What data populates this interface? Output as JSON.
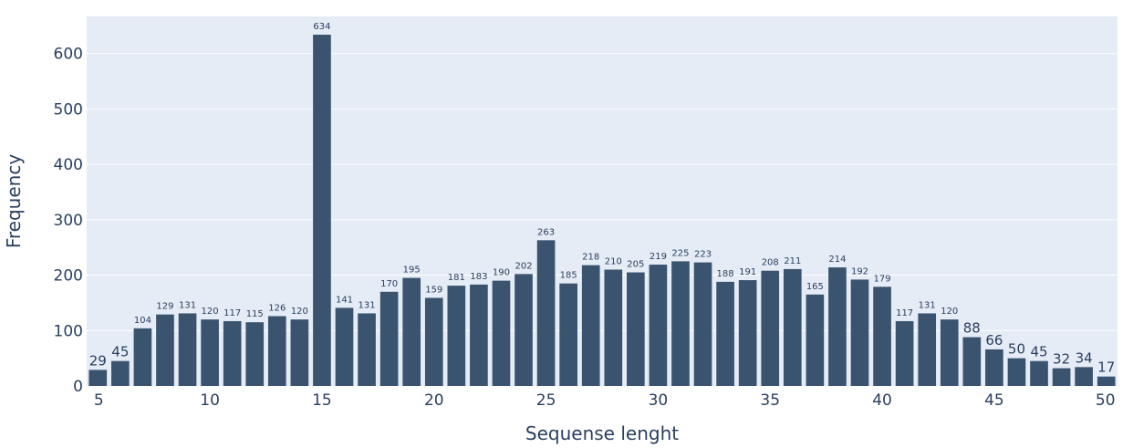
{
  "chart_data": {
    "type": "bar",
    "title": "",
    "xlabel": "Sequense lenght",
    "ylabel": "Frequency",
    "x": [
      5,
      6,
      7,
      8,
      9,
      10,
      11,
      12,
      13,
      14,
      15,
      16,
      17,
      18,
      19,
      20,
      21,
      22,
      23,
      24,
      25,
      26,
      27,
      28,
      29,
      30,
      31,
      32,
      33,
      34,
      35,
      36,
      37,
      38,
      39,
      40,
      41,
      42,
      43,
      44,
      45,
      46,
      47,
      48,
      49,
      50
    ],
    "values": [
      29,
      45,
      104,
      129,
      131,
      120,
      117,
      115,
      126,
      120,
      634,
      141,
      131,
      170,
      195,
      159,
      181,
      183,
      190,
      202,
      263,
      185,
      218,
      210,
      205,
      219,
      225,
      223,
      188,
      191,
      208,
      211,
      165,
      214,
      192,
      179,
      117,
      131,
      120,
      88,
      66,
      50,
      45,
      32,
      34,
      17
    ],
    "x_ticks": [
      5,
      10,
      15,
      20,
      25,
      30,
      35,
      40,
      45,
      50
    ],
    "y_ticks": [
      0,
      100,
      200,
      300,
      400,
      500,
      600
    ],
    "xlim": [
      4.5,
      50.5
    ],
    "ylim": [
      0,
      667
    ],
    "grid": true,
    "colors": {
      "bar": "#3a546f",
      "plot_background": "#e5ecf6",
      "grid": "#ffffff",
      "text": "#2a3f5f"
    }
  }
}
